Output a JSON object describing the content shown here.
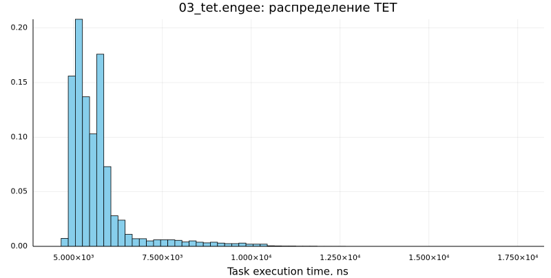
{
  "chart_data": {
    "type": "histogram",
    "title": "03_tet.engee: распределение TET",
    "xlabel": "Task execution time, ns",
    "bins": [
      4650,
      4850,
      5050,
      5250,
      5450,
      5650,
      5850,
      6050,
      6250,
      6450,
      6650,
      6850,
      7050,
      7250,
      7450,
      7650,
      7850,
      8050,
      8250,
      8450,
      8650,
      8850,
      9050,
      9250,
      9450,
      9650,
      9850,
      10050,
      10250,
      10450,
      10650,
      10850,
      11050,
      11250,
      11450,
      11650,
      11850,
      12050,
      12250,
      12450,
      12650
    ],
    "values": [
      0.0073,
      0.156,
      0.208,
      0.137,
      0.103,
      0.176,
      0.073,
      0.028,
      0.024,
      0.011,
      0.007,
      0.007,
      0.005,
      0.006,
      0.006,
      0.006,
      0.0055,
      0.004,
      0.005,
      0.0038,
      0.0032,
      0.0038,
      0.003,
      0.0025,
      0.0025,
      0.003,
      0.002,
      0.002,
      0.002,
      0.0005,
      0.0004,
      0.0003,
      0.0003,
      0.0002,
      0.0002,
      0.0002,
      0.0001,
      0.0001,
      0.0001,
      0.0001
    ],
    "color": "#87ceeb",
    "xlim": [
      3860,
      18240
    ],
    "ylim": [
      0,
      0.208
    ],
    "xticks": [
      {
        "value": 5000,
        "label": "5.000×10³"
      },
      {
        "value": 7500,
        "label": "7.500×10³"
      },
      {
        "value": 10000,
        "label": "1.000×10⁴"
      },
      {
        "value": 12500,
        "label": "1.250×10⁴"
      },
      {
        "value": 15000,
        "label": "1.500×10⁴"
      },
      {
        "value": 17500,
        "label": "1.750×10⁴"
      }
    ],
    "yticks": [
      {
        "value": 0,
        "label": "0.00"
      },
      {
        "value": 0.05,
        "label": "0.05"
      },
      {
        "value": 0.1,
        "label": "0.10"
      },
      {
        "value": 0.15,
        "label": "0.15"
      },
      {
        "value": 0.2,
        "label": "0.20"
      }
    ],
    "grid": true
  }
}
